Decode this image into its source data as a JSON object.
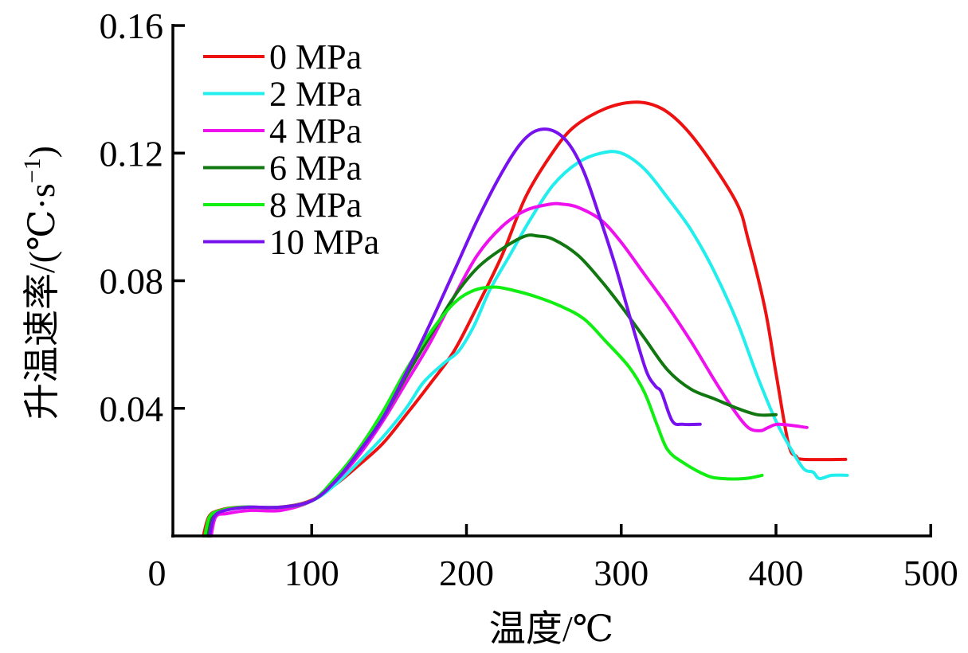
{
  "chart_data": {
    "type": "line",
    "title": "",
    "xlabel": "温度/℃",
    "ylabel": "升温速率/(℃·s⁻¹)",
    "ylabel_parts": {
      "main": "升温速率/(℃·s",
      "sup": "−1",
      "end": ")"
    },
    "xlim": [
      10,
      500
    ],
    "ylim": [
      0,
      0.16
    ],
    "x_ticks": [
      0,
      100,
      200,
      300,
      400,
      500
    ],
    "x_tick_labels": [
      "0",
      "100",
      "200",
      "300",
      "400",
      "500"
    ],
    "y_ticks": [
      0.04,
      0.08,
      0.12,
      0.16
    ],
    "y_tick_labels": [
      "0.04",
      "0.08",
      "0.12",
      "0.16"
    ],
    "grid": false,
    "legend_position": "top-left",
    "series": [
      {
        "name": "0 MPa",
        "color": "#ee1111",
        "x": [
          30,
          33.5,
          40,
          53,
          79,
          99,
          115,
          130,
          146,
          161,
          177,
          192,
          207,
          223,
          238,
          254,
          269,
          290,
          310,
          326,
          341,
          357,
          375,
          382,
          393,
          400,
          408,
          413,
          418,
          445
        ],
        "y": [
          0.0,
          0.006,
          0.008,
          0.009,
          0.009,
          0.011,
          0.016,
          0.022,
          0.029,
          0.038,
          0.048,
          0.058,
          0.072,
          0.088,
          0.106,
          0.119,
          0.128,
          0.134,
          0.136,
          0.134,
          0.128,
          0.118,
          0.104,
          0.093,
          0.071,
          0.051,
          0.029,
          0.025,
          0.024,
          0.024
        ]
      },
      {
        "name": "2 MPa",
        "color": "#22eeee",
        "x": [
          32,
          35,
          42,
          55,
          80,
          100,
          115,
          130,
          146,
          161,
          172,
          185,
          195,
          205,
          215,
          228,
          241,
          256,
          272,
          287,
          300,
          315,
          330,
          345,
          360,
          375,
          388,
          400,
          410,
          418,
          424,
          428,
          436,
          446
        ],
        "y": [
          0.0,
          0.006,
          0.008,
          0.009,
          0.009,
          0.011,
          0.016,
          0.023,
          0.031,
          0.04,
          0.048,
          0.054,
          0.058,
          0.066,
          0.077,
          0.088,
          0.099,
          0.11,
          0.117,
          0.12,
          0.12,
          0.115,
          0.106,
          0.096,
          0.083,
          0.067,
          0.05,
          0.036,
          0.027,
          0.021,
          0.02,
          0.018,
          0.019,
          0.019
        ]
      },
      {
        "name": "4 MPa",
        "color": "#ee11ee",
        "x": [
          35,
          38,
          45,
          60,
          80,
          100,
          115,
          130,
          146,
          161,
          177,
          192,
          207,
          223,
          238,
          254,
          262,
          272,
          287,
          300,
          315,
          330,
          345,
          360,
          372,
          382,
          390,
          395,
          402,
          420
        ],
        "y": [
          0.0,
          0.006,
          0.007,
          0.008,
          0.008,
          0.011,
          0.017,
          0.025,
          0.036,
          0.048,
          0.061,
          0.075,
          0.088,
          0.097,
          0.102,
          0.104,
          0.104,
          0.103,
          0.099,
          0.092,
          0.082,
          0.072,
          0.061,
          0.049,
          0.04,
          0.034,
          0.033,
          0.034,
          0.035,
          0.034
        ]
      },
      {
        "name": "6 MPa",
        "color": "#117711",
        "x": [
          33,
          36,
          43,
          58,
          80,
          100,
          115,
          130,
          146,
          161,
          177,
          192,
          207,
          223,
          238,
          246,
          256,
          272,
          287,
          300,
          315,
          330,
          345,
          360,
          375,
          388,
          400
        ],
        "y": [
          0.0,
          0.006,
          0.008,
          0.009,
          0.009,
          0.011,
          0.017,
          0.026,
          0.037,
          0.05,
          0.063,
          0.075,
          0.084,
          0.09,
          0.094,
          0.094,
          0.093,
          0.088,
          0.08,
          0.072,
          0.062,
          0.052,
          0.046,
          0.043,
          0.04,
          0.038,
          0.038
        ]
      },
      {
        "name": "8 MPa",
        "color": "#11ee11",
        "x": [
          31,
          34,
          41,
          55,
          80,
          100,
          115,
          130,
          146,
          161,
          177,
          192,
          205,
          218,
          230,
          245,
          261,
          276,
          290,
          305,
          315,
          323,
          330,
          340,
          355,
          365,
          380,
          391
        ],
        "y": [
          0.0,
          0.006,
          0.008,
          0.009,
          0.009,
          0.011,
          0.018,
          0.027,
          0.039,
          0.052,
          0.064,
          0.073,
          0.077,
          0.078,
          0.077,
          0.075,
          0.072,
          0.068,
          0.061,
          0.053,
          0.045,
          0.035,
          0.027,
          0.023,
          0.019,
          0.018,
          0.018,
          0.019
        ]
      },
      {
        "name": "10 MPa",
        "color": "#7711ee",
        "x": [
          34,
          37,
          44,
          60,
          80,
          100,
          115,
          130,
          146,
          161,
          177,
          192,
          207,
          223,
          235,
          245,
          256,
          266,
          276,
          286,
          296,
          306,
          316,
          322,
          326,
          333,
          340,
          351
        ],
        "y": [
          0.0,
          0.006,
          0.008,
          0.009,
          0.009,
          0.011,
          0.017,
          0.026,
          0.037,
          0.051,
          0.067,
          0.083,
          0.099,
          0.114,
          0.123,
          0.127,
          0.127,
          0.123,
          0.114,
          0.1,
          0.085,
          0.068,
          0.052,
          0.047,
          0.045,
          0.036,
          0.035,
          0.035
        ]
      }
    ]
  }
}
